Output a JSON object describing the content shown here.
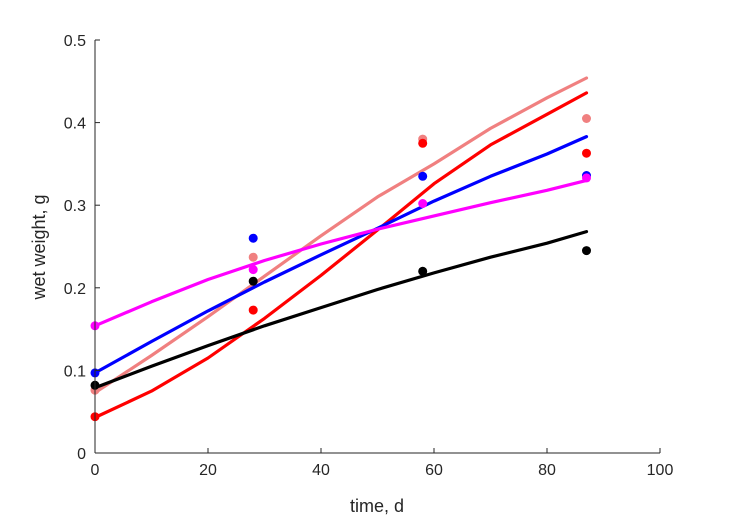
{
  "chart_data": {
    "type": "scatter",
    "title": "",
    "xlabel": "time, d",
    "ylabel": "wet weight, g",
    "xlim": [
      0,
      100
    ],
    "ylim": [
      0,
      0.5
    ],
    "xticks": [
      0,
      20,
      40,
      60,
      80,
      100
    ],
    "yticks": [
      0,
      0.1,
      0.2,
      0.3,
      0.4,
      0.5
    ],
    "xtick_labels": [
      "0",
      "20",
      "40",
      "60",
      "80",
      "100"
    ],
    "ytick_labels": [
      "0",
      "0.1",
      "0.2",
      "0.3",
      "0.4",
      "0.5"
    ],
    "grid": false,
    "legend": "none",
    "series": [
      {
        "color": "#f08080",
        "points": [
          [
            0,
            0.076
          ],
          [
            28,
            0.237
          ],
          [
            58,
            0.38
          ],
          [
            87,
            0.405
          ]
        ],
        "fit": [
          [
            0,
            0.073
          ],
          [
            10,
            0.118
          ],
          [
            20,
            0.165
          ],
          [
            30,
            0.214
          ],
          [
            40,
            0.263
          ],
          [
            50,
            0.31
          ],
          [
            60,
            0.35
          ],
          [
            70,
            0.393
          ],
          [
            80,
            0.43
          ],
          [
            87,
            0.454
          ]
        ]
      },
      {
        "color": "#ff0000",
        "points": [
          [
            0,
            0.044
          ],
          [
            28,
            0.173
          ],
          [
            58,
            0.375
          ],
          [
            87,
            0.363
          ]
        ],
        "fit": [
          [
            0,
            0.043
          ],
          [
            10,
            0.075
          ],
          [
            20,
            0.115
          ],
          [
            30,
            0.163
          ],
          [
            40,
            0.215
          ],
          [
            50,
            0.27
          ],
          [
            60,
            0.326
          ],
          [
            70,
            0.373
          ],
          [
            80,
            0.41
          ],
          [
            87,
            0.436
          ]
        ]
      },
      {
        "color": "#0000ff",
        "points": [
          [
            0,
            0.097
          ],
          [
            28,
            0.26
          ],
          [
            58,
            0.335
          ],
          [
            87,
            0.336
          ]
        ],
        "fit": [
          [
            0,
            0.097
          ],
          [
            10,
            0.135
          ],
          [
            20,
            0.172
          ],
          [
            30,
            0.207
          ],
          [
            40,
            0.24
          ],
          [
            50,
            0.272
          ],
          [
            60,
            0.305
          ],
          [
            70,
            0.335
          ],
          [
            80,
            0.362
          ],
          [
            87,
            0.383
          ]
        ]
      },
      {
        "color": "#ff00ff",
        "points": [
          [
            0,
            0.154
          ],
          [
            28,
            0.222
          ],
          [
            58,
            0.302
          ],
          [
            87,
            0.333
          ]
        ],
        "fit": [
          [
            0,
            0.154
          ],
          [
            10,
            0.183
          ],
          [
            20,
            0.21
          ],
          [
            30,
            0.233
          ],
          [
            40,
            0.253
          ],
          [
            50,
            0.271
          ],
          [
            60,
            0.287
          ],
          [
            70,
            0.303
          ],
          [
            80,
            0.318
          ],
          [
            87,
            0.33
          ]
        ]
      },
      {
        "color": "#000000",
        "points": [
          [
            0,
            0.082
          ],
          [
            28,
            0.208
          ],
          [
            58,
            0.22
          ],
          [
            87,
            0.245
          ]
        ],
        "fit": [
          [
            0,
            0.079
          ],
          [
            10,
            0.105
          ],
          [
            20,
            0.13
          ],
          [
            30,
            0.154
          ],
          [
            40,
            0.176
          ],
          [
            50,
            0.198
          ],
          [
            60,
            0.218
          ],
          [
            70,
            0.237
          ],
          [
            80,
            0.254
          ],
          [
            87,
            0.268
          ]
        ]
      }
    ]
  }
}
